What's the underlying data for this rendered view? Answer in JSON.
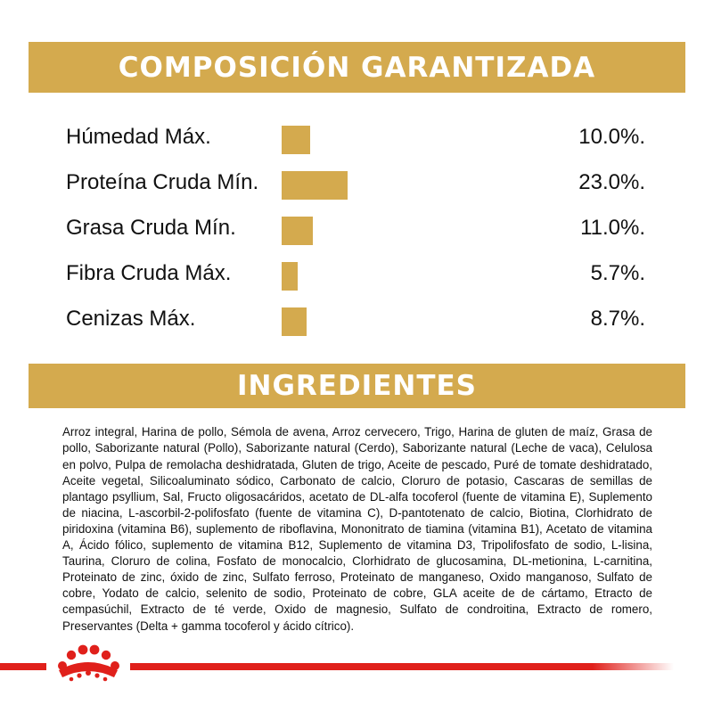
{
  "composition": {
    "title": "COMPOSICIÓN GARANTIZADA",
    "accent_color": "#d4aa4e",
    "rows": [
      {
        "label": "Húmedad Máx.",
        "value": "10.0%.",
        "percent": 10.0
      },
      {
        "label": "Proteína Cruda Mín.",
        "value": "23.0%.",
        "percent": 23.0
      },
      {
        "label": "Grasa Cruda Mín.",
        "value": "11.0%.",
        "percent": 11.0
      },
      {
        "label": "Fibra Cruda Máx.",
        "value": "5.7%.",
        "percent": 5.7
      },
      {
        "label": "Cenizas Máx.",
        "value": "8.7%.",
        "percent": 8.7
      }
    ]
  },
  "ingredients": {
    "title": "INGREDIENTES",
    "text": "Arroz integral, Harina de pollo, Sémola de avena, Arroz cervecero, Trigo, Harina de gluten de maíz, Grasa de pollo, Saborizante natural (Pollo), Saborizante natural (Cerdo), Saborizante natural (Leche de vaca), Celulosa en polvo, Pulpa de remolacha deshidratada, Gluten de trigo, Aceite de pescado, Puré de tomate deshidratado, Aceite vegetal, Silicoaluminato sódico, Carbonato de calcio, Cloruro de potasio, Cascaras de semillas de plantago psyllium, Sal, Fructo oligosacáridos, acetato de DL-alfa tocoferol (fuente de vitamina E), Suplemento de niacina, L-ascorbil-2-polifosfato (fuente de vitamina C), D-pantotenato de calcio, Biotina, Clorhidrato de piridoxina (vitamina B6), suplemento de riboflavina, Mononitrato de tiamina (vitamina B1), Acetato de vitamina A, Ácido fólico, suplemento de vitamina B12, Suplemento de vitamina D3, Tripolifosfato de sodio, L-lisina, Taurina, Cloruro de colina, Fosfato de monocalcio, Clorhidrato de glucosamina, DL-metionina, L-carnitina, Proteinato de zinc, óxido de zinc, Sulfato ferroso, Proteinato de manganeso, Oxido manganoso, Sulfato de cobre, Yodato de calcio, selenito de sodio, Proteinato de cobre, GLA aceite de de cártamo, Etracto de cempasúchil, Extracto de té verde, Oxido de magnesio, Sulfato de condroitina, Extracto de romero, Preservantes (Delta + gamma tocoferol y ácido cítrico)."
  },
  "footer": {
    "brand_color": "#e0201b",
    "logo_icon": "royal-canin-crown-icon"
  }
}
